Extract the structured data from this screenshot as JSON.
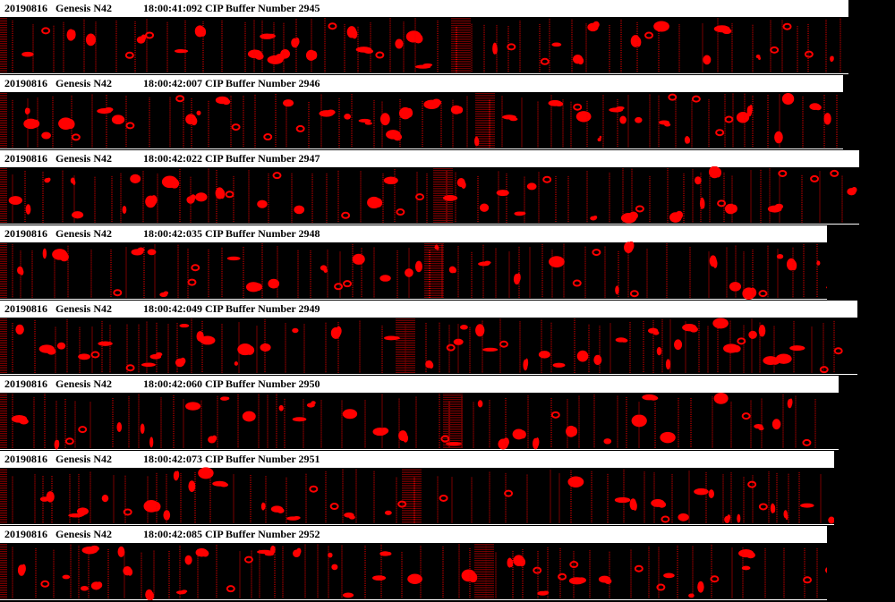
{
  "panels": [
    {
      "date": "20190816",
      "probe": "Genesis N42",
      "timestamp": "18:00:41:092 CIP Buffer Number 2945"
    },
    {
      "date": "20190816",
      "probe": "Genesis N42",
      "timestamp": "18:00:42:007 CIP Buffer Number 2946"
    },
    {
      "date": "20190816",
      "probe": "Genesis N42",
      "timestamp": "18:00:42:022 CIP Buffer Number 2947"
    },
    {
      "date": "20190816",
      "probe": "Genesis N42",
      "timestamp": "18:00:42:035 CIP Buffer Number 2948"
    },
    {
      "date": "20190816",
      "probe": "Genesis N42",
      "timestamp": "18:00:42:049 CIP Buffer Number 2949"
    },
    {
      "date": "20190816",
      "probe": "Genesis N42",
      "timestamp": "18:00:42:060 CIP Buffer Number 2950"
    },
    {
      "date": "20190816",
      "probe": "Genesis N42",
      "timestamp": "18:00:42:073 CIP Buffer Number 2951"
    },
    {
      "date": "20190816",
      "probe": "Genesis N42",
      "timestamp": "18:00:42:085 CIP Buffer Number 2952"
    }
  ]
}
